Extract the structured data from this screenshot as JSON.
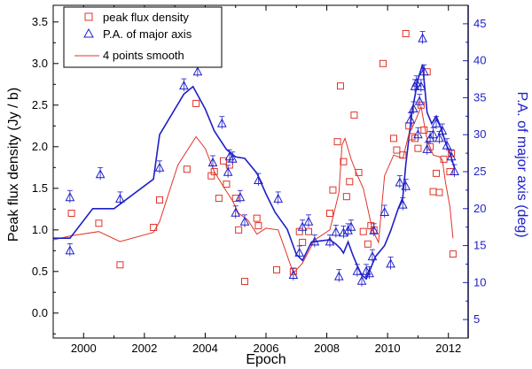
{
  "chart_data": {
    "type": "scatter",
    "xlabel": "Epoch",
    "ylabel_left": "Peak flux density (Jy / b)",
    "ylabel_right": "P.A. of major axis (deg)",
    "xlim": [
      1999.0,
      2012.65
    ],
    "ylim_left": [
      -0.3,
      3.7
    ],
    "ylim_right": [
      2.5,
      47.5
    ],
    "x_ticks": [
      2000,
      2002,
      2004,
      2006,
      2008,
      2010,
      2012
    ],
    "x_tick_labels": [
      "2000",
      "2002",
      "2004",
      "2006",
      "2008",
      "2010",
      "2012"
    ],
    "y_left_ticks": [
      0.0,
      0.5,
      1.0,
      1.5,
      2.0,
      2.5,
      3.0,
      3.5
    ],
    "y_left_tick_labels": [
      "0.0",
      "0.5",
      "1.0",
      "1.5",
      "2.0",
      "2.5",
      "3.0",
      "3.5"
    ],
    "y_right_ticks": [
      5,
      10,
      15,
      20,
      25,
      30,
      35,
      40,
      45
    ],
    "y_right_tick_labels": [
      "5",
      "10",
      "15",
      "20",
      "25",
      "30",
      "35",
      "40",
      "45"
    ],
    "legend_position": "top-left",
    "colors": {
      "flux": "#e0342a",
      "pa": "#1f1fc9",
      "axis": "#000000",
      "right_axis": "#1f1fc9"
    },
    "series": [
      {
        "name": "peak flux density",
        "marker": "square",
        "axis": "left",
        "x": [
          1999.6,
          2000.5,
          2001.2,
          2002.3,
          2002.5,
          2003.4,
          2003.7,
          2004.2,
          2004.3,
          2004.45,
          2004.6,
          2004.7,
          2004.8,
          2005.0,
          2005.1,
          2005.3,
          2005.7,
          2005.75,
          2006.35,
          2006.9,
          2007.1,
          2007.2,
          2007.4,
          2008.1,
          2008.2,
          2008.35,
          2008.45,
          2008.55,
          2008.65,
          2008.75,
          2008.9,
          2009.05,
          2009.2,
          2009.35,
          2009.45,
          2009.55,
          2009.85,
          2010.2,
          2010.3,
          2010.5,
          2010.6,
          2010.7,
          2010.8,
          2010.9,
          2011.0,
          2011.1,
          2011.2,
          2011.3,
          2011.4,
          2011.5,
          2011.6,
          2011.7,
          2011.85,
          2012.05,
          2012.1,
          2012.15
        ],
        "y": [
          1.2,
          1.08,
          0.58,
          1.03,
          1.36,
          1.73,
          2.52,
          1.65,
          1.7,
          1.38,
          1.83,
          1.55,
          1.78,
          1.38,
          1.0,
          0.38,
          1.14,
          1.05,
          0.52,
          0.5,
          0.98,
          0.85,
          0.98,
          1.2,
          1.48,
          2.06,
          2.73,
          1.82,
          1.4,
          1.58,
          2.38,
          1.69,
          0.98,
          0.83,
          1.05,
          1.0,
          3.0,
          2.1,
          1.96,
          1.9,
          3.36,
          2.25,
          2.12,
          2.1,
          1.98,
          2.5,
          2.2,
          2.9,
          2.0,
          1.46,
          1.68,
          1.45,
          1.85,
          1.7,
          1.92,
          0.71
        ]
      },
      {
        "name": "P.A. of major axis",
        "marker": "triangle",
        "axis": "right",
        "x": [
          1999.55,
          1999.55,
          2000.55,
          2001.2,
          2002.5,
          2003.3,
          2003.75,
          2004.25,
          2004.55,
          2004.75,
          2004.8,
          2004.9,
          2005.0,
          2005.15,
          2005.3,
          2005.75,
          2006.4,
          2006.9,
          2007.1,
          2007.2,
          2007.4,
          2007.6,
          2008.1,
          2008.3,
          2008.4,
          2008.55,
          2008.7,
          2008.8,
          2009.0,
          2009.15,
          2009.3,
          2009.4,
          2009.5,
          2009.55,
          2009.9,
          2010.1,
          2010.4,
          2010.5,
          2010.6,
          2010.75,
          2010.85,
          2010.9,
          2010.95,
          2011.0,
          2011.05,
          2011.1,
          2011.15,
          2011.2,
          2011.3,
          2011.4,
          2011.5,
          2011.6,
          2011.7,
          2011.8,
          2011.95,
          2012.1,
          2012.2
        ],
        "y": [
          21.5,
          14.3,
          24.6,
          21.3,
          25.5,
          36.6,
          38.5,
          26.2,
          31.5,
          24.9,
          27.0,
          26.7,
          19.4,
          21.5,
          18.2,
          23.8,
          21.3,
          11.0,
          14.0,
          17.5,
          18.2,
          15.5,
          15.5,
          16.8,
          10.8,
          16.7,
          17.0,
          17.5,
          11.5,
          10.2,
          11.5,
          11.2,
          13.5,
          17.0,
          19.5,
          12.5,
          23.5,
          20.5,
          23.0,
          32.0,
          33.5,
          36.5,
          37.0,
          30.0,
          34.5,
          36.5,
          43.0,
          38.5,
          28.0,
          29.5,
          30.0,
          31.5,
          29.5,
          30.5,
          28.5,
          27.0,
          25.0
        ]
      },
      {
        "name": "4 points smooth",
        "marker": "line",
        "axis": "left",
        "x": [
          1999.0,
          1999.6,
          2000.5,
          2001.2,
          2002.3,
          2002.5,
          2003.1,
          2003.7,
          2004.0,
          2004.3,
          2004.6,
          2004.9,
          2005.1,
          2005.4,
          2005.7,
          2006.0,
          2006.4,
          2006.9,
          2007.2,
          2007.6,
          2008.1,
          2008.3,
          2008.4,
          2008.5,
          2008.6,
          2008.8,
          2009.0,
          2009.2,
          2009.35,
          2009.5,
          2009.7,
          2009.9,
          2010.2,
          2010.5,
          2010.7,
          2010.9,
          2011.1,
          2011.3,
          2011.5,
          2011.7,
          2011.8,
          2011.9,
          2012.05,
          2012.15
        ],
        "y": [
          0.88,
          0.93,
          0.98,
          0.86,
          0.97,
          1.1,
          1.78,
          2.12,
          1.98,
          1.7,
          1.52,
          1.35,
          1.2,
          1.12,
          0.95,
          1.02,
          1.0,
          0.48,
          0.6,
          0.88,
          1.0,
          1.3,
          1.45,
          2.02,
          2.1,
          1.85,
          1.66,
          1.5,
          1.25,
          1.0,
          0.85,
          1.65,
          1.9,
          1.86,
          2.15,
          2.3,
          2.48,
          2.08,
          1.9,
          1.88,
          1.84,
          1.58,
          1.28,
          0.9
        ]
      },
      {
        "name": "P.A. smooth",
        "marker": "line",
        "axis": "right",
        "x": [
          1999.0,
          1999.55,
          2000.3,
          2001.0,
          2002.3,
          2002.5,
          2003.3,
          2003.6,
          2004.0,
          2004.3,
          2004.7,
          2005.0,
          2005.3,
          2005.7,
          2006.0,
          2006.3,
          2006.7,
          2007.0,
          2007.2,
          2007.5,
          2008.1,
          2008.3,
          2008.45,
          2008.55,
          2008.7,
          2008.85,
          2009.0,
          2009.15,
          2009.3,
          2009.45,
          2009.6,
          2009.9,
          2010.1,
          2010.35,
          2010.5,
          2010.6,
          2010.8,
          2011.0,
          2011.15,
          2011.3,
          2011.45,
          2011.6,
          2011.75,
          2011.9,
          2012.05,
          2012.2
        ],
        "y": [
          16.0,
          16.0,
          20.0,
          20.0,
          24.0,
          30.0,
          35.5,
          36.5,
          33.5,
          30.5,
          28.0,
          27.0,
          26.8,
          24.8,
          22.0,
          19.5,
          17.2,
          13.8,
          13.0,
          15.5,
          15.8,
          15.2,
          14.6,
          14.0,
          15.5,
          13.8,
          12.3,
          11.0,
          10.5,
          12.0,
          13.5,
          15.0,
          17.0,
          20.0,
          21.5,
          26.0,
          33.0,
          37.5,
          39.5,
          33.0,
          31.5,
          32.5,
          31.0,
          29.0,
          27.5,
          25.5
        ]
      }
    ],
    "legend": [
      {
        "label": "peak flux density",
        "marker": "square"
      },
      {
        "label": "P.A. of major axis",
        "marker": "triangle"
      },
      {
        "label": "4 points smooth",
        "marker": "line"
      }
    ]
  }
}
